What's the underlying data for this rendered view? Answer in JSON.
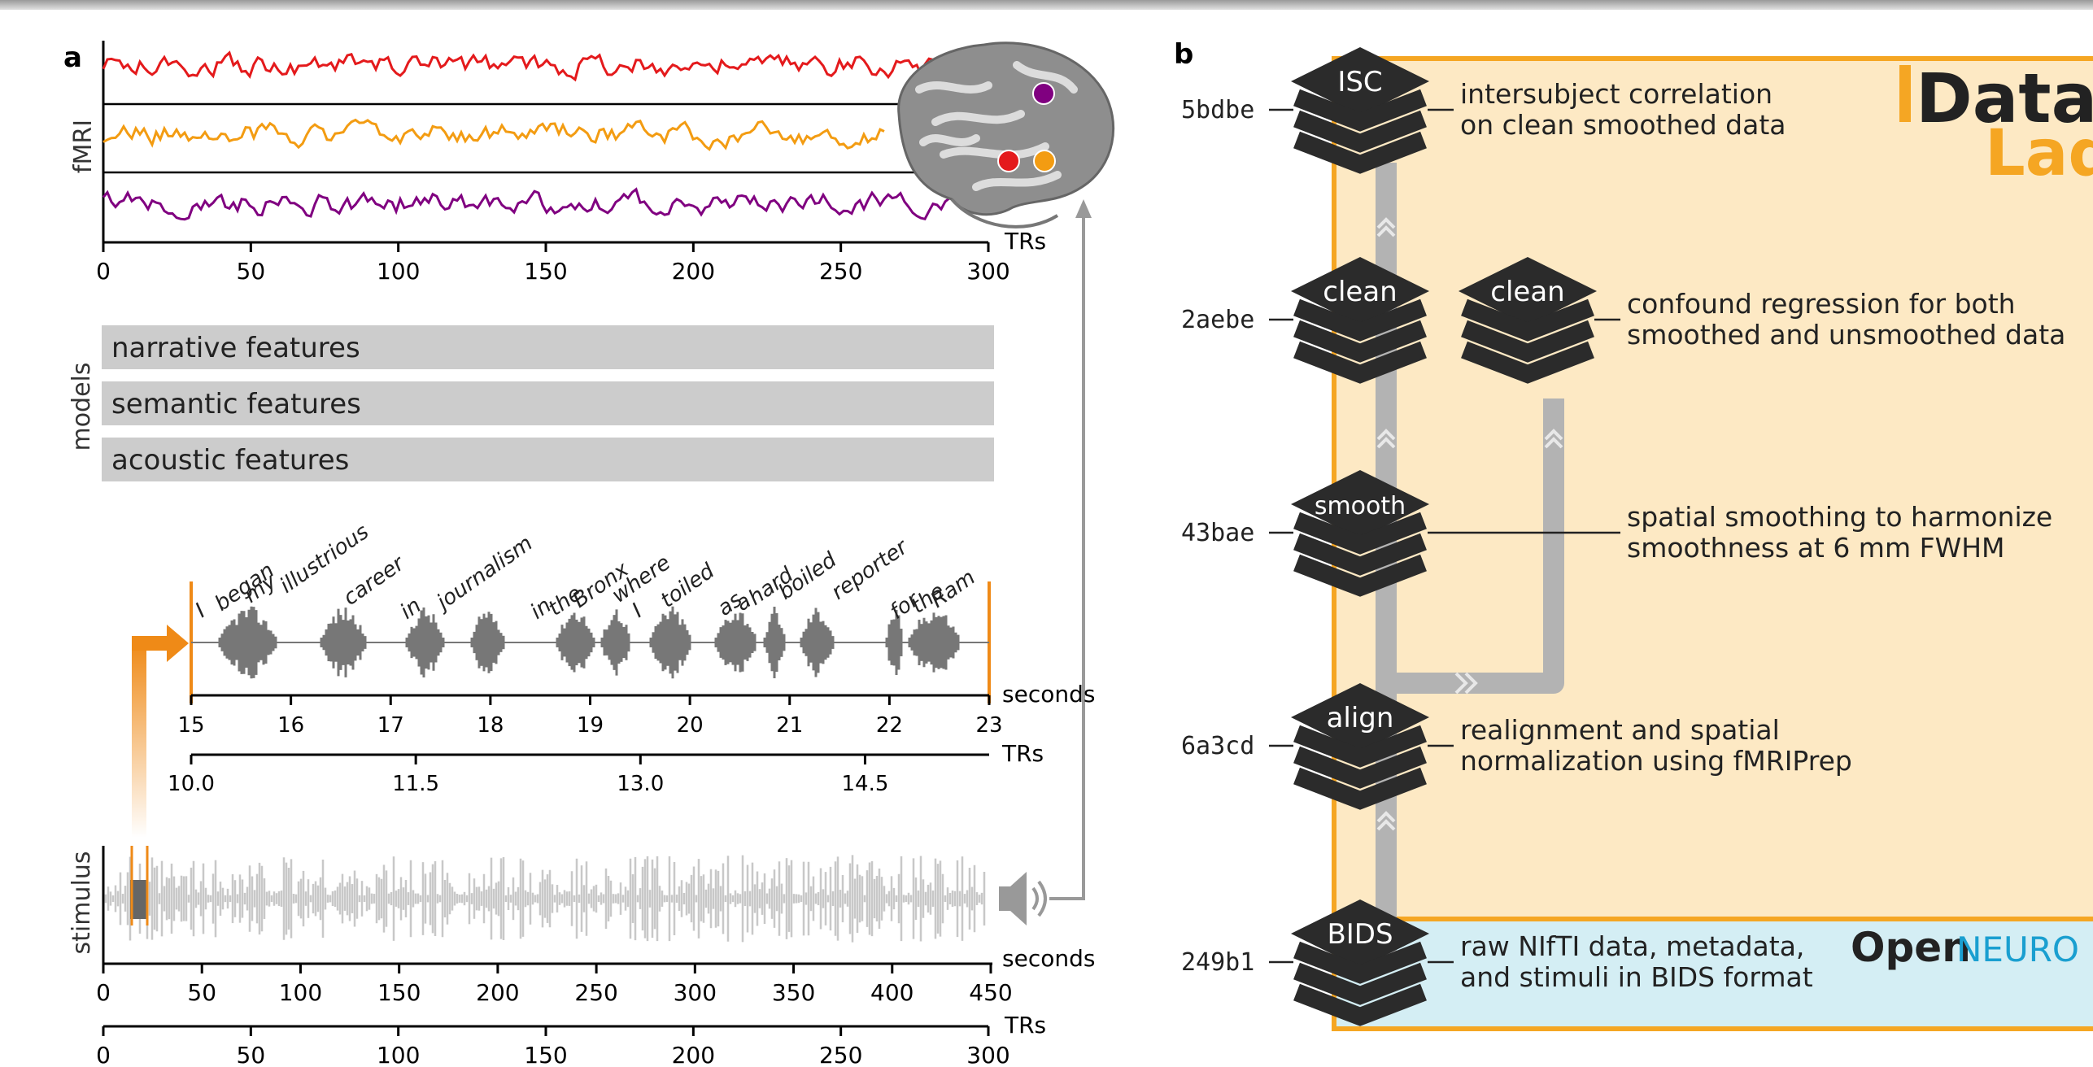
{
  "panel_a": {
    "label": "a",
    "fmri_label": "fMRI",
    "models_label": "models",
    "stimulus_label": "stimulus",
    "fmri_axis": {
      "ticks": [
        "0",
        "50",
        "100",
        "150",
        "200",
        "250",
        "300"
      ],
      "unit": "TRs"
    },
    "models": [
      "narrative features",
      "semantic features",
      "acoustic features"
    ],
    "words": [
      "I",
      "began",
      "my",
      "illustrious",
      "career",
      "in",
      "journalism",
      "in",
      "the",
      "Bronx",
      "where",
      "I",
      "toiled",
      "as",
      "a",
      "hard",
      "boiled",
      "reporter",
      "for",
      "the",
      "Ram"
    ],
    "zoom_seconds_axis": {
      "ticks": [
        "15",
        "16",
        "17",
        "18",
        "19",
        "20",
        "21",
        "22",
        "23"
      ],
      "unit": "seconds"
    },
    "zoom_trs_axis": {
      "ticks": [
        "10.0",
        "11.5",
        "13.0",
        "14.5"
      ],
      "unit": "TRs"
    },
    "stimulus_seconds_axis": {
      "ticks": [
        "0",
        "50",
        "100",
        "150",
        "200",
        "250",
        "300",
        "350",
        "400",
        "450"
      ],
      "unit": "seconds"
    },
    "stimulus_trs_axis": {
      "ticks": [
        "0",
        "50",
        "100",
        "150",
        "200",
        "250",
        "300"
      ],
      "unit": "TRs"
    },
    "colors": {
      "roi_red": "#e41a1c",
      "roi_orange": "#f39c12",
      "roi_purple": "#800080",
      "accent_orange": "#ef8a17",
      "band_gray": "#cccccc"
    }
  },
  "panel_b": {
    "label": "b",
    "steps": [
      {
        "hash": "5bdbe",
        "tag": "ISC",
        "desc1": "intersubject correlation",
        "desc2": "on clean smoothed data"
      },
      {
        "hash": "2aebe",
        "tag": "clean",
        "tag2": "clean",
        "desc1": "confound regression for both",
        "desc2": "smoothed and unsmoothed data"
      },
      {
        "hash": "43bae",
        "tag": "smooth",
        "desc1": "spatial smoothing to harmonize",
        "desc2": "smoothness at 6 mm FWHM"
      },
      {
        "hash": "6a3cd",
        "tag": "align",
        "desc1": "realignment and spatial",
        "desc2": "normalization using fMRIPrep"
      },
      {
        "hash": "249b1",
        "tag": "BIDS",
        "desc1": "raw NIfTI data, metadata,",
        "desc2": "and stimuli in BIDS format"
      }
    ],
    "logo_datalad_1": "Data",
    "logo_datalad_2": "Lad",
    "logo_openneuro_1": "Open",
    "logo_openneuro_2": "NEURO",
    "colors": {
      "derivatives_fill": "#fde9c4",
      "derivatives_border": "#f5a623",
      "raw_fill": "#d4eef4",
      "chevron": "#2b2b2b",
      "pipe": "#b3b3b3"
    }
  }
}
